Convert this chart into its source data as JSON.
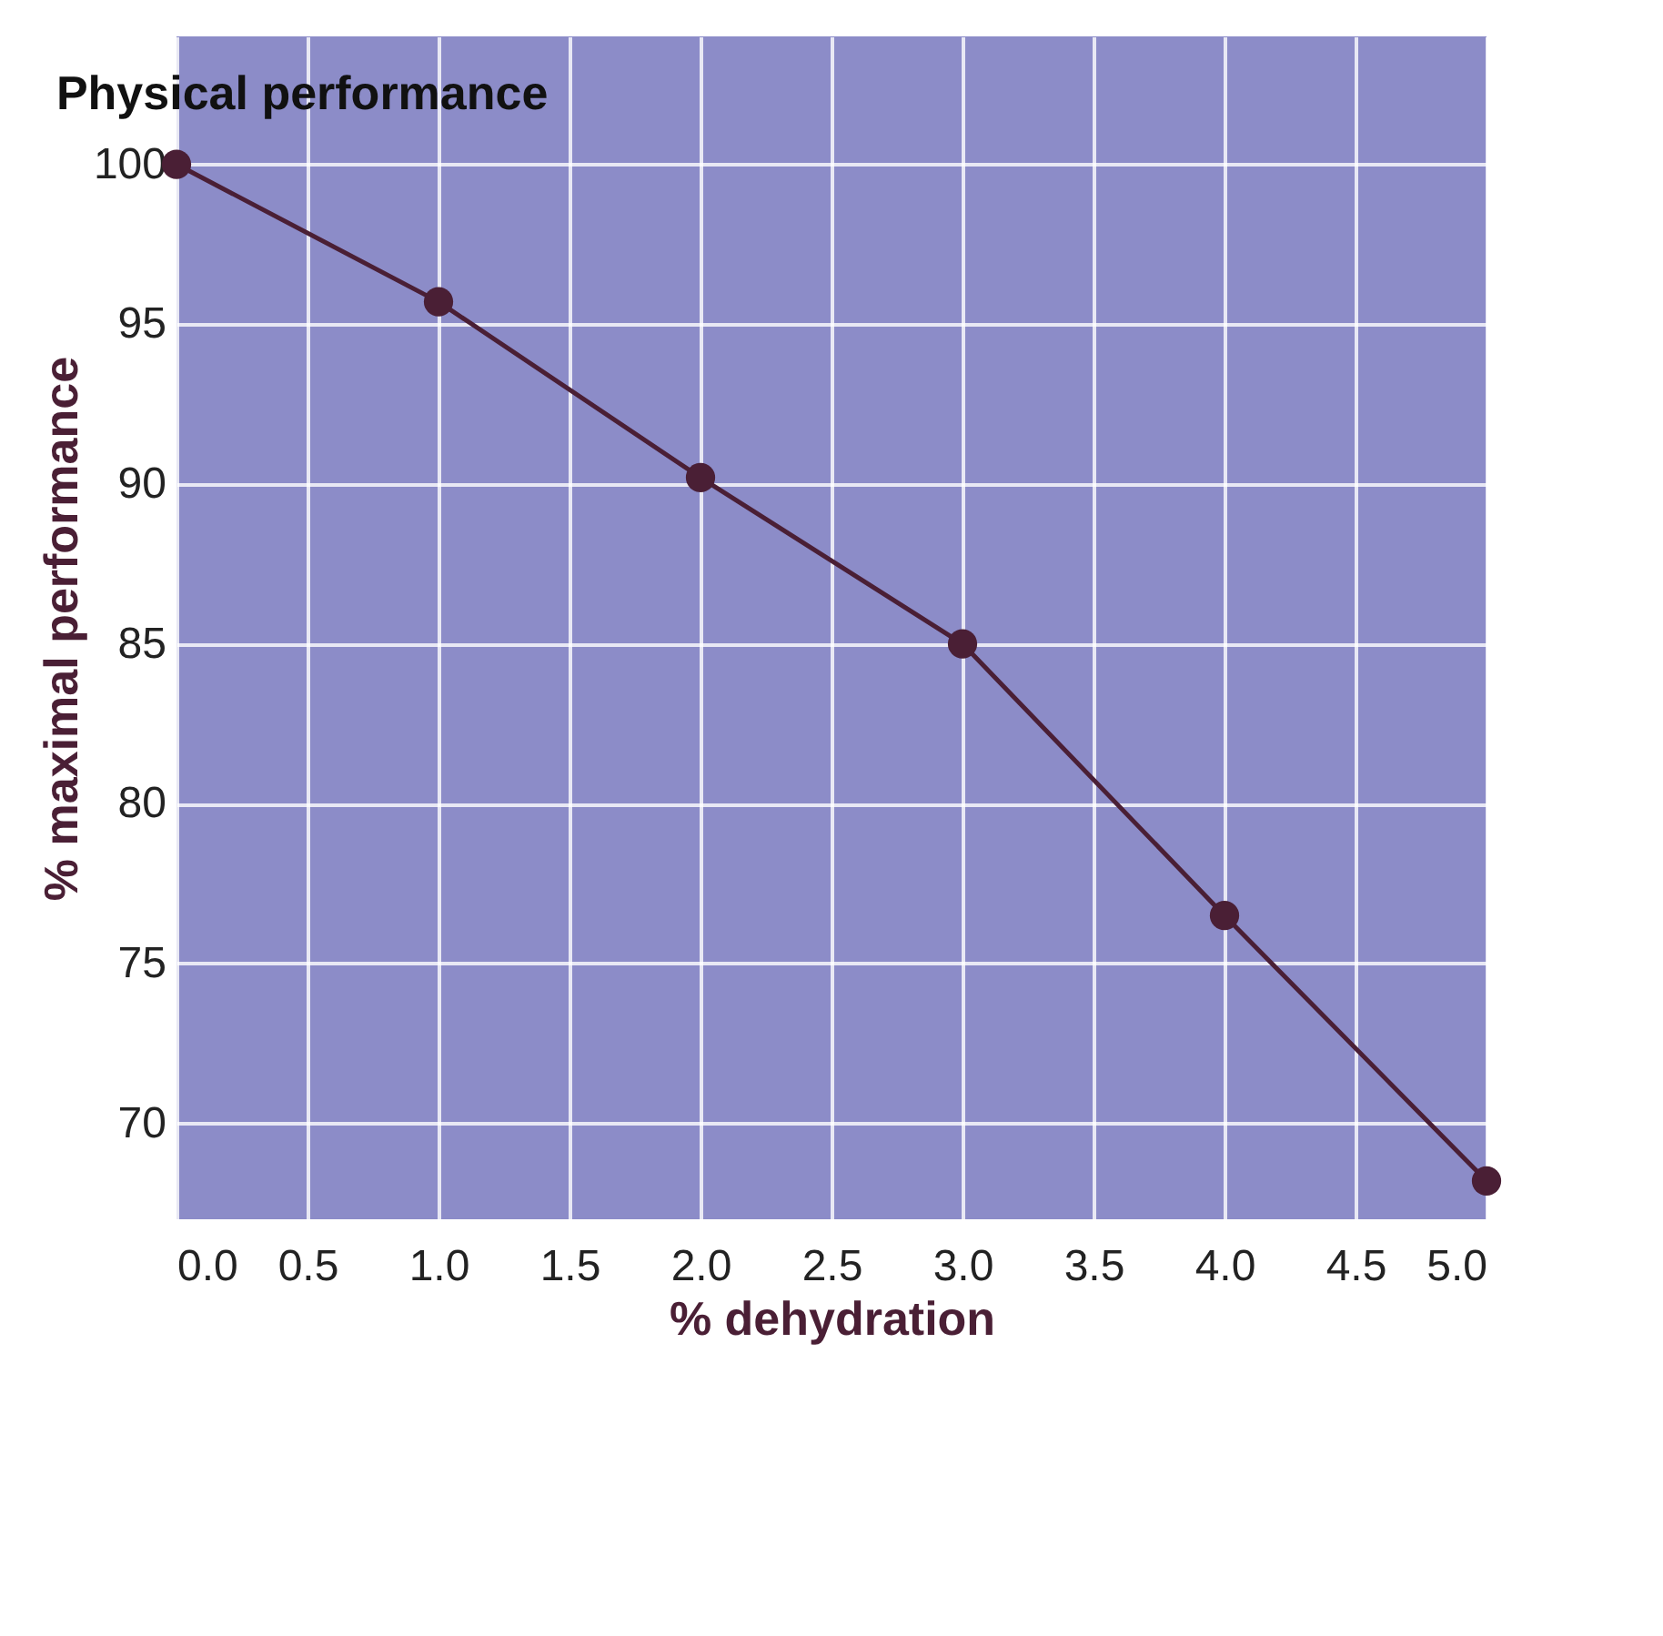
{
  "chart_data": {
    "type": "line",
    "title": "Physical performance",
    "xlabel": "% dehydration",
    "ylabel": "% maximal performance",
    "x": [
      0.0,
      1.0,
      2.0,
      3.0,
      4.0,
      5.0
    ],
    "series": [
      {
        "color": "#4a1f35",
        "values": [
          100,
          95.7,
          90.2,
          85,
          76.5,
          68.2
        ]
      }
    ],
    "xlim": [
      0,
      5
    ],
    "xticks": [
      {
        "value": 0,
        "label": "0.0"
      },
      0.5,
      {
        "value": 1,
        "label": "1.0"
      },
      1.5,
      {
        "value": 2,
        "label": "2.0"
      },
      2.5,
      {
        "value": 3,
        "label": "3.0"
      },
      3.5,
      {
        "value": 4,
        "label": "4.0"
      },
      4.5,
      {
        "value": 5,
        "label": "5.0"
      }
    ],
    "ylim": [
      67,
      104
    ],
    "yticks": [
      70,
      75,
      80,
      85,
      90,
      95,
      100
    ],
    "grid": true,
    "marker": "circle",
    "line_style": "solid"
  }
}
